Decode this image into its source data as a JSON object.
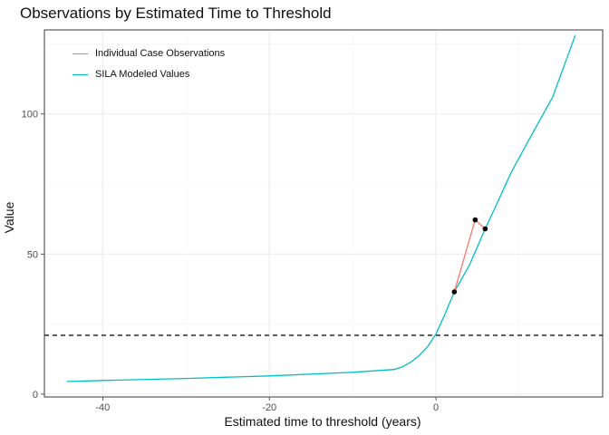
{
  "title": "Observations by Estimated Time to Threshold",
  "chart_data": {
    "type": "line",
    "title": "Observations by Estimated Time to Threshold",
    "xlabel": "Estimated time to threshold (years)",
    "ylabel": "Value",
    "xlim": [
      -47,
      20
    ],
    "ylim": [
      -1,
      130
    ],
    "x_ticks": [
      -40,
      -20,
      0
    ],
    "x_tick_labels": [
      "-40",
      "-20",
      "0"
    ],
    "y_ticks": [
      0,
      50,
      100
    ],
    "y_tick_labels": [
      "0",
      "50",
      "100"
    ],
    "grid": true,
    "legend_position": "top-left",
    "threshold_y": 21,
    "series": [
      {
        "name": "Individual Case Observations",
        "color": "#f8766d",
        "x": [
          2.2,
          4.7,
          5.9
        ],
        "y": [
          36.5,
          62.2,
          59.0
        ],
        "points": true
      },
      {
        "name": "SILA Modeled Values",
        "color": "#00bfc4",
        "x": [
          -44.3,
          -40,
          -30,
          -20,
          -10,
          -5,
          -4,
          -3,
          -2,
          -1,
          0,
          1,
          2.2,
          4,
          5.9,
          7,
          9,
          11,
          14,
          16.7
        ],
        "y": [
          4.5,
          4.9,
          5.6,
          6.5,
          7.8,
          8.8,
          9.8,
          11.5,
          13.8,
          17.0,
          21.5,
          28.0,
          36.5,
          46.0,
          59.0,
          66.0,
          79.0,
          90.0,
          106.0,
          128.0
        ],
        "points": false
      }
    ]
  }
}
